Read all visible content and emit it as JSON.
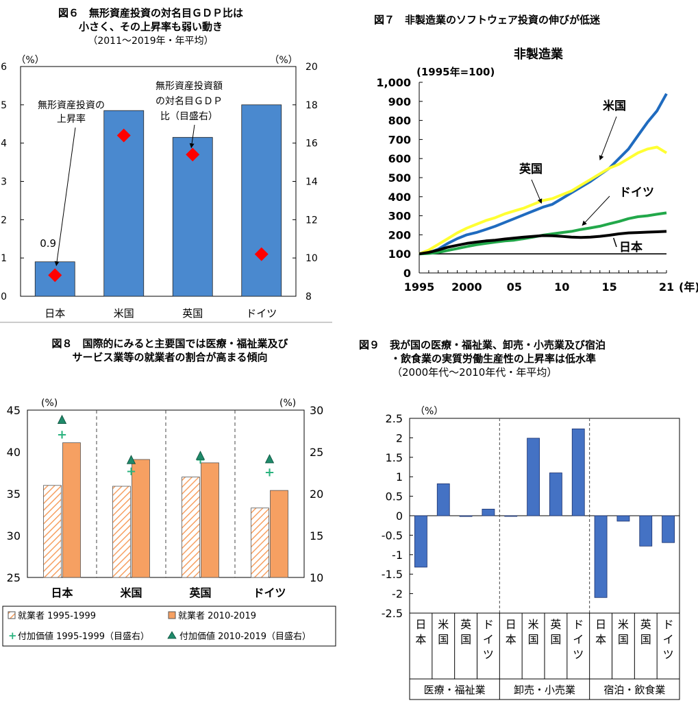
{
  "fig6": {
    "title": [
      "図６　無形資産投資の対名目ＧＤＰ比は",
      "小さく、その上昇率も弱い動き",
      "（2011～2019年・年平均）"
    ],
    "left_unit": "（%）",
    "right_unit": "（%）",
    "annotation_rate": [
      "無形資産投資の",
      "上昇率"
    ],
    "annotation_ratio": [
      "無形資産投資額",
      "の対名目ＧＤＰ",
      "比（目盛右）"
    ],
    "value_label_japan": "0.9"
  },
  "fig7": {
    "title": "図７　非製造業のソフトウェア投資の伸びが低迷",
    "subtitle": "非製造業",
    "unit": "(1995年=100)",
    "xlabel_suffix": "(年)",
    "series_labels": [
      "米国",
      "英国",
      "ドイツ",
      "日本"
    ]
  },
  "fig8": {
    "title": [
      "図８　国際的にみると主要国では医療・福祉業及び",
      "サービス業等の就業者の割合が高まる傾向"
    ],
    "left_unit": "(%)",
    "right_unit": "(%)",
    "legend": [
      "就業者 1995-1999",
      "就業者 2010-2019",
      "付加価値 1995-1999（目盛右）",
      "付加価値 2010-2019（目盛右）"
    ]
  },
  "fig9": {
    "title": [
      "図９　我が国の医療・福祉業、卸売・小売業及び宿泊",
      "・飲食業の実質労働生産性の上昇率は低水準",
      "（2000年代～2010年代・年平均）"
    ],
    "unit": "（%）",
    "groups": [
      "医療・福祉業",
      "卸売・小売業",
      "宿泊・飲食業"
    ]
  },
  "chart_data": [
    {
      "type": "bar",
      "id": "fig6",
      "categories": [
        "日本",
        "米国",
        "英国",
        "ドイツ"
      ],
      "series": [
        {
          "name": "無形資産投資の上昇率",
          "axis": "left",
          "type": "bar",
          "values": [
            0.9,
            4.85,
            4.15,
            5.0
          ]
        },
        {
          "name": "無形資産投資額の対名目ＧＤＰ比",
          "axis": "right",
          "type": "scatter",
          "values": [
            9.1,
            16.4,
            15.4,
            10.2
          ]
        }
      ],
      "ylim_left": [
        0,
        6
      ],
      "ylim_right": [
        8,
        20
      ],
      "yticks_left": [
        0,
        1,
        2,
        3,
        4,
        5,
        6
      ],
      "yticks_right": [
        8,
        10,
        12,
        14,
        16,
        18,
        20
      ],
      "colors": {
        "bar": "#4a89cf",
        "marker": "#ff0000"
      }
    },
    {
      "type": "line",
      "id": "fig7",
      "x": [
        1995,
        1996,
        1997,
        1998,
        1999,
        2000,
        2001,
        2002,
        2003,
        2004,
        2005,
        2006,
        2007,
        2008,
        2009,
        2010,
        2011,
        2012,
        2013,
        2014,
        2015,
        2016,
        2017,
        2018,
        2019,
        2020,
        2021
      ],
      "series": [
        {
          "name": "米国",
          "color": "#1f6bbf",
          "values": [
            100,
            105,
            125,
            155,
            180,
            200,
            212,
            228,
            245,
            265,
            285,
            305,
            325,
            345,
            360,
            390,
            420,
            450,
            480,
            515,
            550,
            600,
            650,
            720,
            790,
            850,
            940
          ]
        },
        {
          "name": "英国",
          "color": "#ffff33",
          "values": [
            100,
            120,
            150,
            180,
            210,
            235,
            255,
            275,
            290,
            310,
            325,
            340,
            360,
            380,
            390,
            410,
            430,
            460,
            490,
            520,
            550,
            570,
            600,
            630,
            650,
            660,
            630
          ]
        },
        {
          "name": "ドイツ",
          "color": "#22a84a",
          "values": [
            100,
            102,
            108,
            118,
            128,
            138,
            148,
            155,
            162,
            168,
            172,
            180,
            188,
            198,
            205,
            212,
            218,
            228,
            236,
            245,
            258,
            270,
            285,
            295,
            300,
            308,
            315
          ]
        },
        {
          "name": "日本",
          "color": "#000000",
          "values": [
            100,
            108,
            120,
            135,
            145,
            155,
            162,
            168,
            172,
            178,
            183,
            188,
            192,
            196,
            195,
            192,
            188,
            186,
            188,
            192,
            198,
            205,
            210,
            212,
            214,
            216,
            218
          ]
        }
      ],
      "ylim": [
        0,
        1000
      ],
      "yticks": [
        "0",
        "100",
        "200",
        "300",
        "400",
        "500",
        "600",
        "700",
        "800",
        "900",
        "1,000"
      ],
      "xticks": [
        "1995",
        "2000",
        "05",
        "10",
        "15",
        "21"
      ]
    },
    {
      "type": "bar",
      "id": "fig8",
      "categories": [
        "日本",
        "米国",
        "英国",
        "ドイツ"
      ],
      "series": [
        {
          "name": "就業者 1995-1999",
          "axis": "left",
          "type": "bar",
          "values": [
            36.0,
            35.9,
            37.0,
            33.3
          ],
          "color": "#f6a062",
          "pattern": "hatch"
        },
        {
          "name": "就業者 2010-2019",
          "axis": "left",
          "type": "bar",
          "values": [
            41.1,
            39.1,
            38.7,
            35.4
          ],
          "color": "#f6a062"
        },
        {
          "name": "付加価値 1995-1999（目盛右）",
          "axis": "right",
          "type": "scatter",
          "values": [
            27.1,
            22.7,
            24.1,
            22.6
          ],
          "color": "#2bb37f"
        },
        {
          "name": "付加価値 2010-2019（目盛右）",
          "axis": "right",
          "type": "scatter",
          "values": [
            28.8,
            24.0,
            24.5,
            24.1
          ],
          "color": "#1f8a6a"
        }
      ],
      "ylim_left": [
        25,
        45
      ],
      "ylim_right": [
        10,
        30
      ],
      "yticks_left": [
        25,
        30,
        35,
        40,
        45
      ],
      "yticks_right": [
        10,
        15,
        20,
        25,
        30
      ]
    },
    {
      "type": "bar",
      "id": "fig9",
      "categories": [
        "日本",
        "米国",
        "英国",
        "ドイツ",
        "日本",
        "米国",
        "英国",
        "ドイツ",
        "日本",
        "米国",
        "英国",
        "ドイツ"
      ],
      "values": [
        -1.32,
        0.82,
        -0.02,
        0.17,
        0.0,
        1.99,
        1.1,
        2.23,
        -2.1,
        -0.14,
        -0.78,
        -0.69
      ],
      "ylim": [
        -2.5,
        2.5
      ],
      "yticks": [
        "-2.5",
        "-2",
        "-1.5",
        "-1",
        "-0.5",
        "0",
        "0.5",
        "1",
        "1.5",
        "2",
        "2.5"
      ],
      "color": "#4472c4"
    }
  ]
}
